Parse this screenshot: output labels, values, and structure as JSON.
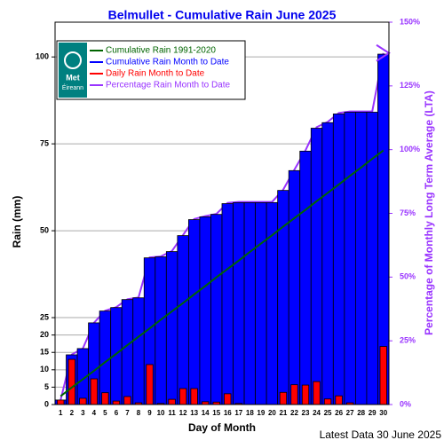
{
  "chart_data": {
    "type": "bar",
    "title": "Belmullet - Cumulative Rain June   2025",
    "xlabel": "Day of Month",
    "ylabel": "Rain (mm)",
    "y2label": "Percentage  of Monthly Long Term Average (LTA)",
    "footer": "Latest Data 30 June 2025",
    "logo": [
      "Met",
      "Éireann"
    ],
    "categories": [
      "1",
      "2",
      "3",
      "4",
      "5",
      "6",
      "7",
      "8",
      "9",
      "10",
      "11",
      "12",
      "13",
      "14",
      "15",
      "16",
      "17",
      "18",
      "19",
      "20",
      "21",
      "22",
      "23",
      "24",
      "25",
      "26",
      "27",
      "28",
      "29",
      "30"
    ],
    "series": [
      {
        "name": "Cumulative Rain 1991-2020",
        "color": "#006400",
        "kind": "line",
        "values": [
          2.4,
          4.9,
          7.3,
          9.7,
          12.2,
          14.6,
          17.1,
          19.5,
          21.9,
          24.4,
          26.8,
          29.2,
          31.7,
          34.1,
          36.6,
          39.0,
          41.4,
          43.9,
          46.3,
          48.7,
          51.2,
          53.6,
          56.0,
          58.5,
          60.9,
          63.3,
          65.8,
          68.2,
          70.7,
          73.1
        ]
      },
      {
        "name": "Cumulative Rain Month to Date",
        "color": "#0000ff",
        "kind": "bar",
        "values": [
          1.3,
          14.3,
          16.1,
          23.5,
          26.9,
          27.9,
          30.2,
          30.7,
          42.2,
          42.5,
          44.0,
          48.6,
          53.2,
          54.0,
          54.7,
          57.8,
          58.1,
          58.1,
          58.1,
          58.1,
          61.6,
          67.3,
          72.9,
          79.5,
          81.1,
          83.6,
          84.1,
          84.1,
          84.1,
          100.8
        ]
      },
      {
        "name": "Daily Rain Month to Date",
        "color": "#ff0000",
        "kind": "bar",
        "values": [
          1.3,
          13.0,
          1.8,
          7.4,
          3.4,
          1.0,
          2.3,
          0.5,
          11.5,
          0.3,
          1.5,
          4.6,
          4.6,
          0.8,
          0.7,
          3.1,
          0.3,
          0,
          0,
          0,
          3.5,
          5.7,
          5.6,
          6.6,
          1.6,
          2.5,
          0.5,
          0,
          0,
          16.7
        ]
      },
      {
        "name": "Percentage Rain Month to Date",
        "color": "#9933ff",
        "kind": "line",
        "axis": "y2",
        "values": [
          1.8,
          19.6,
          22.0,
          32.1,
          36.8,
          38.2,
          41.3,
          42.0,
          57.7,
          58.1,
          60.2,
          66.5,
          72.8,
          73.9,
          74.8,
          79.1,
          79.5,
          79.5,
          79.5,
          79.5,
          84.3,
          92.1,
          99.7,
          108.8,
          110.9,
          114.4,
          115.0,
          115.0,
          115.0,
          137.9
        ]
      }
    ],
    "ylim": [
      0,
      110
    ],
    "yticks": [
      0,
      5,
      10,
      15,
      20,
      25,
      50,
      75,
      100
    ],
    "y2lim": [
      0,
      150
    ],
    "y2ticks": [
      {
        "value": 0,
        "label": "0%"
      },
      {
        "value": 25,
        "label": "25%"
      },
      {
        "value": 50,
        "label": "50%"
      },
      {
        "value": 75,
        "label": "75%"
      },
      {
        "value": 100,
        "label": "100%"
      },
      {
        "value": 125,
        "label": "125%"
      },
      {
        "value": 150,
        "label": "150%"
      }
    ],
    "grid": true
  }
}
